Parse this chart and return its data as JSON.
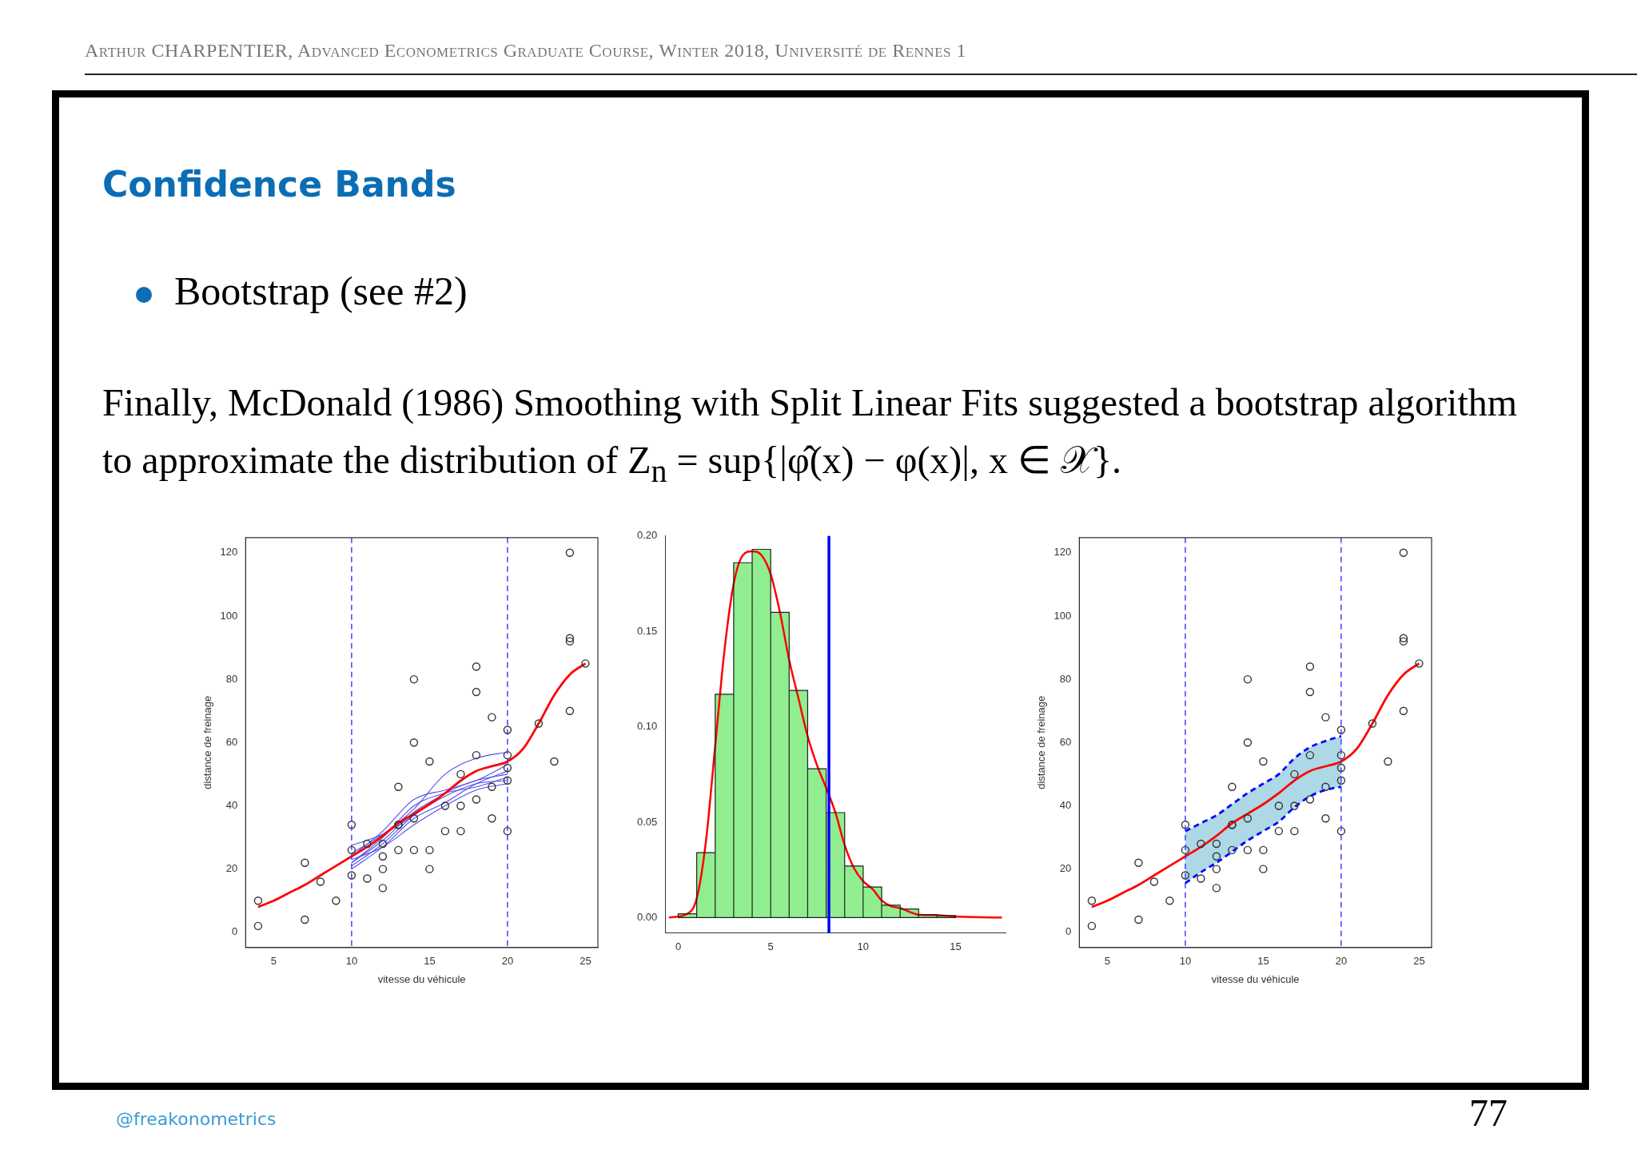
{
  "chart_data": [
    {
      "type": "other",
      "title": "Confidence Bands",
      "annotations": [
        "Arthur CHARPENTIER, Advanced Econometrics Graduate Course, Winter 2018, Université de Rennes 1",
        "Bootstrap (see #2)",
        "Finally, McDonald (1986) Smoothing with Split Linear Fits suggested a bootstrap algorithm to approximate the distribution of Z$_{n}$ = sup{|φ̂(x) − φ(x)|, x ∈ 𝒳}.",
        "@freakonometrics",
        "77"
      ]
    },
    {
      "type": "scatter",
      "xlabel": "vitesse du véhicule",
      "ylabel": "distance de freinage",
      "xlim": [
        3.2,
        25.8
      ],
      "ylim": [
        -4.8,
        124.8
      ],
      "xticks": [
        5,
        10,
        15,
        20,
        25
      ],
      "yticks": [
        0,
        20,
        40,
        60,
        80,
        100,
        120
      ],
      "grid": false,
      "ref_lines": [
        {
          "axis": "x",
          "value": 10,
          "color": "#3333ff",
          "line_style": "dashed"
        },
        {
          "axis": "x",
          "value": 20,
          "color": "#3333ff",
          "line_style": "dashed"
        }
      ],
      "series": [
        {
          "type": "scatter",
          "color": "#333333",
          "marker": "circle",
          "x": [
            4,
            4,
            7,
            7,
            8,
            9,
            10,
            10,
            10,
            11,
            11,
            12,
            12,
            12,
            12,
            13,
            13,
            13,
            13,
            14,
            14,
            14,
            14,
            15,
            15,
            15,
            16,
            16,
            17,
            17,
            17,
            18,
            18,
            18,
            18,
            19,
            19,
            19,
            20,
            20,
            20,
            20,
            20,
            22,
            23,
            24,
            24,
            24,
            24,
            25
          ],
          "values": [
            2,
            10,
            4,
            22,
            16,
            10,
            18,
            26,
            34,
            17,
            28,
            14,
            20,
            24,
            28,
            26,
            34,
            34,
            46,
            26,
            36,
            60,
            80,
            20,
            26,
            54,
            32,
            40,
            32,
            40,
            50,
            42,
            56,
            76,
            84,
            36,
            46,
            68,
            32,
            48,
            52,
            56,
            64,
            66,
            54,
            70,
            92,
            93,
            120,
            85
          ]
        },
        {
          "type": "line",
          "color": "#5050e8",
          "x": [
            10,
            12,
            14,
            16,
            18,
            20
          ],
          "values": [
            21,
            28,
            37,
            43,
            47,
            48
          ]
        },
        {
          "type": "line",
          "color": "#5050e8",
          "x": [
            10,
            12,
            14,
            16,
            18,
            20
          ],
          "values": [
            22,
            30,
            40,
            44,
            46,
            49
          ]
        },
        {
          "type": "line",
          "color": "#5050e8",
          "x": [
            10,
            12,
            14,
            16,
            18,
            20
          ],
          "values": [
            23,
            27,
            34,
            40,
            45,
            47
          ]
        },
        {
          "type": "line",
          "color": "#5050e8",
          "x": [
            10,
            12,
            14,
            16,
            18,
            20
          ],
          "values": [
            27.5,
            31,
            37,
            44,
            48,
            50
          ]
        },
        {
          "type": "line",
          "color": "#5050e8",
          "x": [
            10,
            12,
            14,
            16,
            18,
            20
          ],
          "values": [
            20,
            27,
            36,
            41,
            47,
            51
          ]
        },
        {
          "type": "line",
          "color": "#5050e8",
          "x": [
            10,
            12,
            14,
            16,
            18,
            20
          ],
          "values": [
            24,
            32,
            42,
            45,
            48,
            53
          ]
        },
        {
          "type": "line",
          "color": "#5050e8",
          "x": [
            10,
            12,
            14,
            16,
            18,
            20
          ],
          "values": [
            25,
            31,
            39,
            50,
            55,
            57
          ]
        },
        {
          "type": "line",
          "color": "#5050e8",
          "x": [
            10,
            12,
            14,
            16,
            18,
            20
          ],
          "values": [
            22,
            29,
            38,
            44,
            51,
            54
          ]
        },
        {
          "type": "line",
          "color": "#ff0000",
          "x": [
            4,
            5,
            6,
            7,
            8,
            9,
            10,
            11,
            12,
            13,
            14,
            15,
            16,
            17,
            18,
            19,
            20,
            21,
            22,
            23,
            24,
            25
          ],
          "values": [
            8,
            10,
            12.5,
            15,
            18,
            21,
            24,
            27,
            30.5,
            34.5,
            37.5,
            40.5,
            44,
            48,
            51,
            52.5,
            54,
            58,
            66,
            75,
            81.5,
            85
          ]
        }
      ]
    },
    {
      "type": "histogram",
      "xlim": [
        -0.7,
        17.7
      ],
      "ylim": [
        -0.008,
        0.2
      ],
      "xticks": [
        0,
        5,
        10,
        15
      ],
      "yticks": [
        {
          "value": 0,
          "label": "0.00"
        },
        {
          "value": 0.05,
          "label": "0.05"
        },
        {
          "value": 0.1,
          "label": "0.10"
        },
        {
          "value": 0.15,
          "label": "0.15"
        },
        {
          "value": 0.2,
          "label": "0.20"
        }
      ],
      "grid": false,
      "ref_lines": [
        {
          "axis": "x",
          "value": 8.15,
          "color": "#0000ff",
          "line_style": "solid"
        }
      ],
      "series": [
        {
          "type": "histogram",
          "color": "#90ee90",
          "bins": [
            0,
            1,
            2,
            3,
            4,
            5,
            6,
            7,
            8,
            9,
            10,
            11,
            12,
            13,
            14,
            15
          ],
          "values": [
            0.002,
            0.034,
            0.117,
            0.186,
            0.193,
            0.16,
            0.119,
            0.078,
            0.055,
            0.027,
            0.016,
            0.0065,
            0.0045,
            0.0015,
            0.001
          ]
        },
        {
          "type": "line",
          "color": "#ff0000",
          "x": [
            -0.5,
            0.5,
            1,
            1.5,
            2,
            2.5,
            3,
            3.5,
            4,
            4.5,
            5,
            5.5,
            6,
            6.5,
            7,
            7.5,
            8,
            8.5,
            9,
            9.5,
            10,
            10.5,
            11,
            11.5,
            12,
            12.5,
            13,
            14,
            15,
            16,
            17.5
          ],
          "values": [
            0,
            0.002,
            0.01,
            0.04,
            0.09,
            0.14,
            0.175,
            0.19,
            0.192,
            0.19,
            0.18,
            0.16,
            0.135,
            0.115,
            0.095,
            0.08,
            0.068,
            0.055,
            0.038,
            0.026,
            0.019,
            0.015,
            0.009,
            0.006,
            0.005,
            0.003,
            0.0015,
            0.0012,
            0.0005,
            0.0002,
            0
          ]
        }
      ]
    },
    {
      "type": "scatter",
      "xlabel": "vitesse du véhicule",
      "ylabel": "distance de freinage",
      "xlim": [
        3.2,
        25.8
      ],
      "ylim": [
        -4.8,
        124.8
      ],
      "xticks": [
        5,
        10,
        15,
        20,
        25
      ],
      "yticks": [
        0,
        20,
        40,
        60,
        80,
        100,
        120
      ],
      "grid": false,
      "ref_lines": [
        {
          "axis": "x",
          "value": 10,
          "color": "#3333ff",
          "line_style": "dashed"
        },
        {
          "axis": "x",
          "value": 20,
          "color": "#3333ff",
          "line_style": "dashed"
        }
      ],
      "series": [
        {
          "type": "scatter",
          "color": "#333333",
          "marker": "circle",
          "x": [
            4,
            4,
            7,
            7,
            8,
            9,
            10,
            10,
            10,
            11,
            11,
            12,
            12,
            12,
            12,
            13,
            13,
            13,
            13,
            14,
            14,
            14,
            14,
            15,
            15,
            15,
            16,
            16,
            17,
            17,
            17,
            18,
            18,
            18,
            18,
            19,
            19,
            19,
            20,
            20,
            20,
            20,
            20,
            22,
            23,
            24,
            24,
            24,
            24,
            25
          ],
          "values": [
            2,
            10,
            4,
            22,
            16,
            10,
            18,
            26,
            34,
            17,
            28,
            14,
            20,
            24,
            28,
            26,
            34,
            34,
            46,
            26,
            36,
            60,
            80,
            20,
            26,
            54,
            32,
            40,
            32,
            40,
            50,
            42,
            56,
            76,
            84,
            36,
            46,
            68,
            32,
            48,
            52,
            56,
            64,
            66,
            54,
            70,
            92,
            93,
            120,
            85
          ]
        },
        {
          "type": "line",
          "color": "#0000ff",
          "line_style": "dashed",
          "x": [
            10,
            11,
            12,
            13,
            14,
            15,
            16,
            17,
            18,
            19,
            20
          ],
          "values": [
            15.5,
            19,
            22,
            25.5,
            29,
            32,
            35,
            39.5,
            43,
            45,
            46
          ]
        },
        {
          "type": "line",
          "color": "#0000ff",
          "line_style": "dashed",
          "x": [
            10,
            11,
            12,
            13,
            14,
            15,
            16,
            17,
            18,
            19,
            20
          ],
          "values": [
            32,
            34.5,
            37,
            40.5,
            44,
            47,
            50,
            55,
            58.5,
            60.5,
            62
          ]
        },
        {
          "type": "line",
          "color": "#ff0000",
          "x": [
            4,
            5,
            6,
            7,
            8,
            9,
            10,
            11,
            12,
            13,
            14,
            15,
            16,
            17,
            18,
            19,
            20,
            21,
            22,
            23,
            24,
            25
          ],
          "values": [
            8,
            10,
            12.5,
            15,
            18,
            21,
            24,
            27,
            30.5,
            34.5,
            37.5,
            40.5,
            44,
            48,
            51,
            52.5,
            54,
            58,
            66,
            75,
            81.5,
            85
          ],
          "lower": [
            null,
            null,
            null,
            null,
            null,
            null,
            15.5,
            19,
            22,
            25.5,
            29,
            32,
            35,
            39.5,
            43,
            45,
            46,
            null,
            null,
            null,
            null,
            null
          ],
          "upper": [
            null,
            null,
            null,
            null,
            null,
            null,
            32,
            34.5,
            37,
            40.5,
            44,
            47,
            50,
            55,
            58.5,
            60.5,
            62,
            null,
            null,
            null,
            null,
            null
          ]
        }
      ]
    }
  ]
}
